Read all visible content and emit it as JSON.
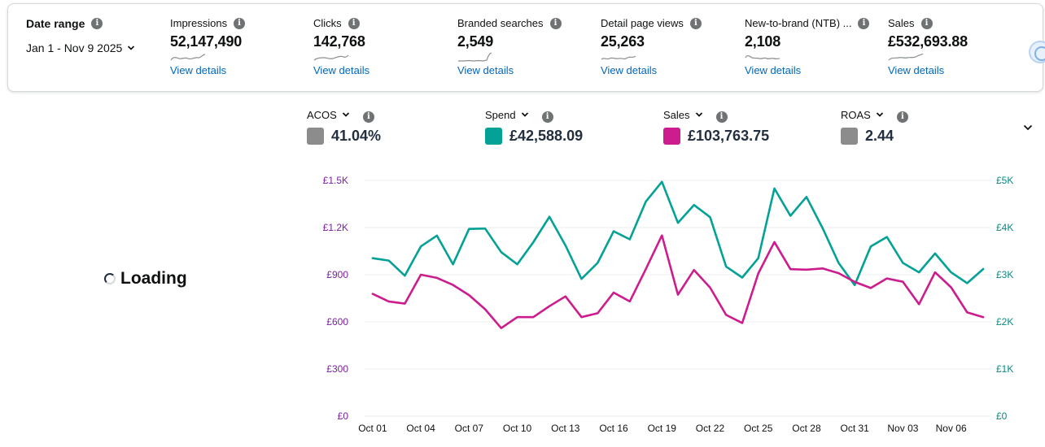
{
  "summary": {
    "date_range": {
      "label": "Date range",
      "value": "Jan 1 - Nov 9 2025"
    },
    "metrics": [
      {
        "label": "Impressions",
        "value": "52,147,490",
        "link": "View details"
      },
      {
        "label": "Clicks",
        "value": "142,768",
        "link": "View details"
      },
      {
        "label": "Branded searches",
        "value": "2,549",
        "link": "View details"
      },
      {
        "label": "Detail page views",
        "value": "25,263",
        "link": "View details"
      },
      {
        "label": "New-to-brand (NTB) ...",
        "value": "2,108",
        "link": "View details"
      },
      {
        "label": "Sales",
        "value": "£532,693.88",
        "link": "View details"
      }
    ]
  },
  "kpis": [
    {
      "label": "ACOS",
      "value": "41.04%",
      "color": "#8c8c8c"
    },
    {
      "label": "Spend",
      "value": "£42,588.09",
      "color": "#03a196"
    },
    {
      "label": "Sales",
      "value": "£103,763.75",
      "color": "#cc1c8e"
    },
    {
      "label": "ROAS",
      "value": "2.44",
      "color": "#8c8c8c"
    }
  ],
  "loading": {
    "text": "Loading"
  },
  "chart_data": {
    "type": "line",
    "x": [
      "Oct 01",
      "Oct 02",
      "Oct 03",
      "Oct 04",
      "Oct 05",
      "Oct 06",
      "Oct 07",
      "Oct 08",
      "Oct 09",
      "Oct 10",
      "Oct 11",
      "Oct 12",
      "Oct 13",
      "Oct 14",
      "Oct 15",
      "Oct 16",
      "Oct 17",
      "Oct 18",
      "Oct 19",
      "Oct 20",
      "Oct 21",
      "Oct 22",
      "Oct 23",
      "Oct 24",
      "Oct 25",
      "Oct 26",
      "Oct 27",
      "Oct 28",
      "Oct 29",
      "Oct 30",
      "Oct 31",
      "Nov 01",
      "Nov 02",
      "Nov 03",
      "Nov 04",
      "Nov 05",
      "Nov 06",
      "Nov 07",
      "Nov 08"
    ],
    "x_tick_labels": [
      "Oct 01",
      "Oct 04",
      "Oct 07",
      "Oct 10",
      "Oct 13",
      "Oct 16",
      "Oct 19",
      "Oct 22",
      "Oct 25",
      "Oct 28",
      "Oct 31",
      "Nov 03",
      "Nov 06"
    ],
    "left_axis": {
      "ticks": [
        "£0",
        "£300",
        "£600",
        "£900",
        "£1.2K",
        "£1.5K"
      ],
      "ylim": [
        0,
        1500
      ],
      "color": "#7a1fa2"
    },
    "right_axis": {
      "ticks": [
        "£0",
        "£1K",
        "£2K",
        "£3K",
        "£4K",
        "£5K"
      ],
      "ylim": [
        0,
        5000
      ],
      "color": "#078a82"
    },
    "series": [
      {
        "name": "Spend",
        "axis": "right",
        "color": "#03a196",
        "values": [
          3350,
          3300,
          2980,
          3600,
          3830,
          3220,
          3970,
          3980,
          3480,
          3220,
          3690,
          4230,
          3620,
          2910,
          3250,
          3920,
          3750,
          4550,
          4970,
          4100,
          4480,
          4220,
          3170,
          2940,
          3350,
          4830,
          4250,
          4650,
          3990,
          3250,
          2780,
          3600,
          3800,
          3250,
          3050,
          3450,
          3050,
          2820,
          3120
        ]
      },
      {
        "name": "Sales",
        "axis": "left",
        "color": "#cc1c8e",
        "values": [
          778,
          730,
          716,
          900,
          880,
          835,
          770,
          680,
          560,
          630,
          630,
          700,
          762,
          630,
          655,
          786,
          730,
          935,
          1150,
          773,
          930,
          818,
          644,
          593,
          908,
          1108,
          935,
          932,
          940,
          910,
          854,
          815,
          876,
          855,
          712,
          915,
          820,
          660,
          630
        ]
      }
    ]
  }
}
